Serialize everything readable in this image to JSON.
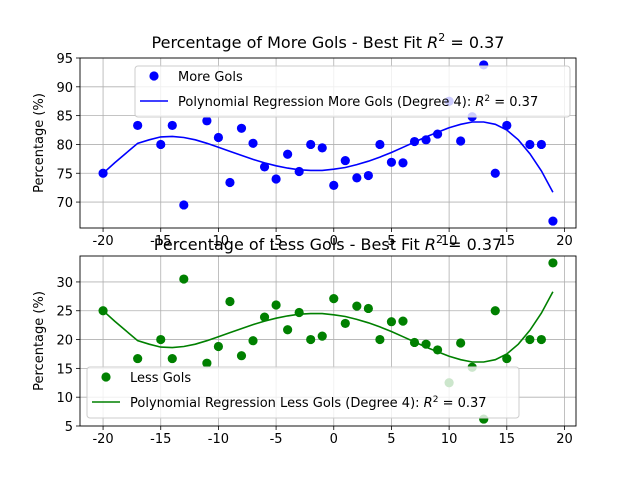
{
  "chart_data": [
    {
      "type": "scatter",
      "title": "Percentage of More Gols - Best Fit R² = 0.37",
      "title_prefix": "Percentage of More Gols - Best Fit ",
      "r2_label": "R",
      "r2_exp": "2",
      "r2_value": " = 0.37",
      "ylabel": "Percentage (%)",
      "xlabel": "",
      "xlim": [
        -22,
        21
      ],
      "ylim": [
        65.5,
        95
      ],
      "xticks": [
        -20,
        -15,
        -10,
        -5,
        0,
        5,
        10,
        15,
        20
      ],
      "yticks": [
        70,
        75,
        80,
        85,
        90,
        95
      ],
      "grid": true,
      "legend_position": "top-center",
      "colors": {
        "points": "#0000ff",
        "line": "#0000ff"
      },
      "series": [
        {
          "name": "More Gols",
          "kind": "points",
          "x": [
            -20,
            -17,
            -15,
            -14,
            -13,
            -11,
            -10,
            -9,
            -8,
            -7,
            -6,
            -5,
            -4,
            -3,
            -2,
            -1,
            0,
            1,
            2,
            3,
            4,
            5,
            6,
            7,
            8,
            9,
            10,
            11,
            12,
            13,
            14,
            15,
            17,
            18,
            19
          ],
          "y": [
            75,
            83.3,
            80,
            83.3,
            69.5,
            84.1,
            81.2,
            73.4,
            82.8,
            80.2,
            76.1,
            74,
            78.3,
            75.3,
            80,
            79.4,
            72.9,
            77.2,
            74.2,
            74.6,
            80,
            76.9,
            76.8,
            80.5,
            80.8,
            81.8,
            87.5,
            80.6,
            84.8,
            93.8,
            75,
            83.3,
            80,
            80,
            66.7
          ]
        },
        {
          "name": "Polynomial Regression More Gols (Degree 4): R² = 0.37",
          "legend_prefix": "Polynomial Regression More Gols (Degree 4): ",
          "kind": "line",
          "x": [
            -20,
            -19,
            -18,
            -17,
            -16,
            -15,
            -14,
            -13,
            -12,
            -11,
            -10,
            -9,
            -8,
            -7,
            -6,
            -5,
            -4,
            -3,
            -2,
            -1,
            0,
            1,
            2,
            3,
            4,
            5,
            6,
            7,
            8,
            9,
            10,
            11,
            12,
            13,
            14,
            15,
            16,
            17,
            18,
            19
          ],
          "y": [
            75,
            76.8,
            78.5,
            80.2,
            80.8,
            81.3,
            81.4,
            81.2,
            80.8,
            80.2,
            79.5,
            78.8,
            78.1,
            77.4,
            76.8,
            76.3,
            75.9,
            75.6,
            75.5,
            75.5,
            75.7,
            76,
            76.5,
            77.1,
            77.8,
            78.6,
            79.5,
            80.4,
            81.3,
            82.1,
            82.9,
            83.5,
            83.9,
            83.9,
            83.5,
            82.5,
            80.8,
            78.4,
            75.4,
            71.7
          ]
        }
      ]
    },
    {
      "type": "scatter",
      "title": "Percentage of Less Gols - Best Fit R² = 0.37",
      "title_prefix": "Percentage of Less Gols - Best Fit ",
      "r2_label": "R",
      "r2_exp": "2",
      "r2_value": " = 0.37",
      "ylabel": "Percentage (%)",
      "xlabel": "",
      "xlim": [
        -22,
        21
      ],
      "ylim": [
        5,
        34.5
      ],
      "xticks": [
        -20,
        -15,
        -10,
        -5,
        0,
        5,
        10,
        15,
        20
      ],
      "yticks": [
        5,
        10,
        15,
        20,
        25,
        30
      ],
      "grid": true,
      "legend_position": "lower-left",
      "colors": {
        "points": "#008000",
        "line": "#008000"
      },
      "series": [
        {
          "name": "Less Gols",
          "kind": "points",
          "x": [
            -20,
            -17,
            -15,
            -14,
            -13,
            -11,
            -10,
            -9,
            -8,
            -7,
            -6,
            -5,
            -4,
            -3,
            -2,
            -1,
            0,
            1,
            2,
            3,
            4,
            5,
            6,
            7,
            8,
            9,
            10,
            11,
            12,
            13,
            14,
            15,
            17,
            18,
            19
          ],
          "y": [
            25,
            16.7,
            20,
            16.7,
            30.5,
            15.9,
            18.8,
            26.6,
            17.2,
            19.8,
            23.9,
            26,
            21.7,
            24.7,
            20,
            20.6,
            27.1,
            22.8,
            25.8,
            25.4,
            20,
            23.1,
            23.2,
            19.5,
            19.2,
            18.2,
            12.5,
            19.4,
            15.2,
            6.2,
            25,
            16.7,
            20,
            20,
            33.3
          ]
        },
        {
          "name": "Polynomial Regression Less Gols (Degree 4): R² = 0.37",
          "legend_prefix": "Polynomial Regression Less Gols (Degree 4): ",
          "kind": "line",
          "x": [
            -20,
            -19,
            -18,
            -17,
            -16,
            -15,
            -14,
            -13,
            -12,
            -11,
            -10,
            -9,
            -8,
            -7,
            -6,
            -5,
            -4,
            -3,
            -2,
            -1,
            0,
            1,
            2,
            3,
            4,
            5,
            6,
            7,
            8,
            9,
            10,
            11,
            12,
            13,
            14,
            15,
            16,
            17,
            18,
            19
          ],
          "y": [
            25,
            23.2,
            21.5,
            19.8,
            19.2,
            18.7,
            18.6,
            18.8,
            19.2,
            19.8,
            20.5,
            21.2,
            21.9,
            22.6,
            23.2,
            23.7,
            24.1,
            24.4,
            24.5,
            24.5,
            24.3,
            24,
            23.5,
            22.9,
            22.2,
            21.4,
            20.5,
            19.6,
            18.7,
            17.9,
            17.1,
            16.5,
            16.1,
            16.1,
            16.5,
            17.5,
            19.2,
            21.6,
            24.6,
            28.3
          ]
        }
      ]
    }
  ]
}
